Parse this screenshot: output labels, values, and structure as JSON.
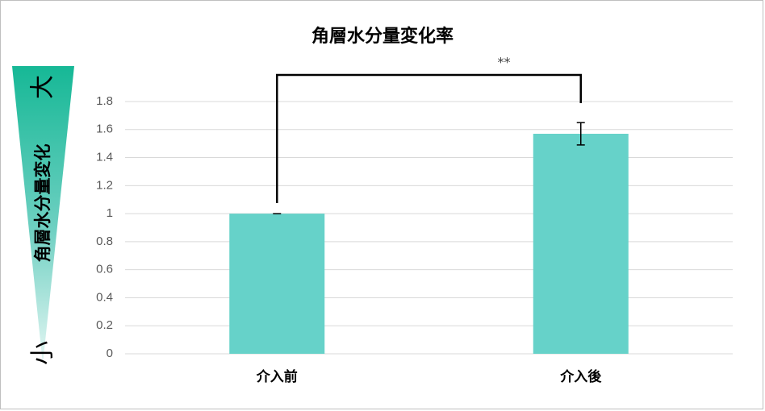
{
  "chart_data": {
    "type": "bar",
    "title": "角層水分量変化率",
    "y_label": "角層水分量変化",
    "y_high_label": "大",
    "y_low_label": "小",
    "categories": [
      "介入前",
      "介入後"
    ],
    "values": [
      1,
      1.57
    ],
    "errors": [
      0,
      0.08
    ],
    "color": "#66d2c9",
    "ylim": [
      0,
      1.8
    ],
    "yticks": [
      0,
      0.2,
      0.4,
      0.6,
      0.8,
      1,
      1.2,
      1.4,
      1.6,
      1.8
    ],
    "grid": true,
    "significance": "**"
  }
}
